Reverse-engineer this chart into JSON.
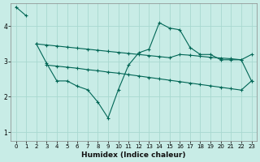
{
  "xlabel": "Humidex (Indice chaleur)",
  "background_color": "#c8ece6",
  "grid_color": "#a8d8d0",
  "line_color": "#006655",
  "xlim": [
    -0.5,
    23.5
  ],
  "ylim": [
    0.75,
    4.65
  ],
  "yticks": [
    1,
    2,
    3,
    4
  ],
  "xticks": [
    0,
    1,
    2,
    3,
    4,
    5,
    6,
    7,
    8,
    9,
    10,
    11,
    12,
    13,
    14,
    15,
    16,
    17,
    18,
    19,
    20,
    21,
    22,
    23
  ],
  "series": [
    {
      "x": [
        0,
        1
      ],
      "y": [
        4.55,
        4.3
      ]
    },
    {
      "x": [
        2,
        3,
        4,
        5,
        6,
        7,
        8,
        9,
        10,
        11,
        12,
        13,
        14,
        15,
        16,
        17,
        18,
        19,
        20,
        21,
        22,
        23
      ],
      "y": [
        3.5,
        2.95,
        2.45,
        2.45,
        2.3,
        2.2,
        1.85,
        1.4,
        2.2,
        2.9,
        3.25,
        3.35,
        4.1,
        3.95,
        3.9,
        3.4,
        3.2,
        3.2,
        3.05,
        3.05,
        3.05,
        2.45
      ]
    },
    {
      "x": [
        2,
        3,
        4,
        5,
        6,
        7,
        8,
        9,
        10,
        11,
        12,
        13,
        14,
        15,
        16,
        17,
        18,
        19,
        20,
        21,
        22,
        23
      ],
      "y": [
        3.5,
        3.47,
        3.44,
        3.41,
        3.38,
        3.35,
        3.32,
        3.29,
        3.26,
        3.23,
        3.2,
        3.17,
        3.14,
        3.11,
        3.2,
        3.18,
        3.15,
        3.12,
        3.1,
        3.08,
        3.05,
        3.2
      ]
    },
    {
      "x": [
        3,
        4,
        5,
        6,
        7,
        8,
        9,
        10,
        11,
        12,
        13,
        14,
        15,
        16,
        17,
        18,
        19,
        20,
        21,
        22,
        23
      ],
      "y": [
        2.9,
        2.87,
        2.84,
        2.81,
        2.77,
        2.74,
        2.7,
        2.67,
        2.63,
        2.59,
        2.55,
        2.51,
        2.47,
        2.43,
        2.39,
        2.35,
        2.31,
        2.27,
        2.23,
        2.19,
        2.45
      ]
    }
  ]
}
